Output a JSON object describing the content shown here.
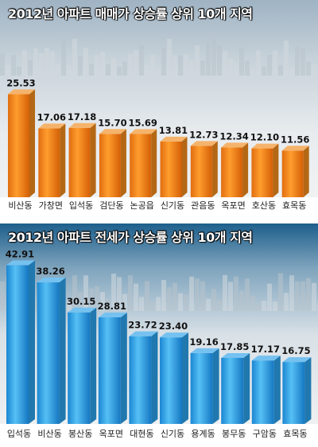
{
  "chart_data": [
    {
      "type": "bar",
      "title": "2012년 아파트 매매가 상승률 상위 10개 지역",
      "categories": [
        "비산동",
        "가창면",
        "입석동",
        "검단동",
        "논공읍",
        "신기동",
        "관음동",
        "옥포면",
        "호산동",
        "효목동"
      ],
      "values": [
        25.53,
        17.06,
        17.18,
        15.7,
        15.69,
        13.81,
        12.73,
        12.34,
        12.1,
        11.56
      ],
      "value_labels": [
        "25.53",
        "17.06",
        "17.18",
        "15.70",
        "15.69",
        "13.81",
        "12.73",
        "12.34",
        "12.10",
        "11.56"
      ],
      "ylim": [
        0,
        26
      ],
      "bar_color": "#f08a1c",
      "grid": false,
      "legend": "none"
    },
    {
      "type": "bar",
      "title": "2012년 아파트 전세가 상승률 상위 10개 지역",
      "categories": [
        "입석동",
        "비산동",
        "봉산동",
        "옥포면",
        "대현동",
        "신기동",
        "용계동",
        "봉무동",
        "구암동",
        "효목동"
      ],
      "values": [
        42.91,
        38.26,
        30.15,
        28.81,
        23.72,
        23.4,
        19.16,
        17.85,
        17.17,
        16.75
      ],
      "value_labels": [
        "42.91",
        "38.26",
        "30.15",
        "28.81",
        "23.72",
        "23.40",
        "19.16",
        "17.85",
        "17.17",
        "16.75"
      ],
      "ylim": [
        0,
        43
      ],
      "bar_color": "#2aa0e8",
      "grid": false,
      "legend": "none"
    }
  ]
}
